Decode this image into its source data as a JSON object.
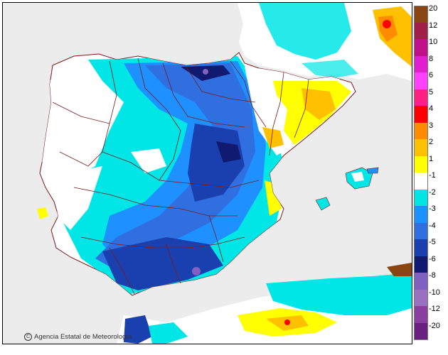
{
  "map": {
    "credit": "Agencia Estatal de Meteorología",
    "colors": {
      "sea": "#ececec",
      "border": "#7a1a1a"
    }
  },
  "legend": {
    "entries": [
      {
        "label": "20",
        "color": "#8b4513"
      },
      {
        "label": "12",
        "color": "#a0204a"
      },
      {
        "label": "10",
        "color": "#c0108a"
      },
      {
        "label": "8",
        "color": "#e020d0"
      },
      {
        "label": "6",
        "color": "#ff40ff"
      },
      {
        "label": "5",
        "color": "#ff2080"
      },
      {
        "label": "4",
        "color": "#ff0000"
      },
      {
        "label": "3",
        "color": "#ff8c00"
      },
      {
        "label": "2",
        "color": "#ffc000"
      },
      {
        "label": "1",
        "color": "#ffff00"
      },
      {
        "label": "-1",
        "color": "#ffffff"
      },
      {
        "label": "-2",
        "color": "#00e5e5"
      },
      {
        "label": "-3",
        "color": "#1e90ff"
      },
      {
        "label": "-4",
        "color": "#2f6fe0"
      },
      {
        "label": "-5",
        "color": "#1a40b0"
      },
      {
        "label": "-6",
        "color": "#0f1a70"
      },
      {
        "label": "-8",
        "color": "#8060c0"
      },
      {
        "label": "-10",
        "color": "#9a70c0"
      },
      {
        "label": "-12",
        "color": "#8a40a0"
      },
      {
        "label": "-20",
        "color": "#6a2080"
      }
    ]
  }
}
